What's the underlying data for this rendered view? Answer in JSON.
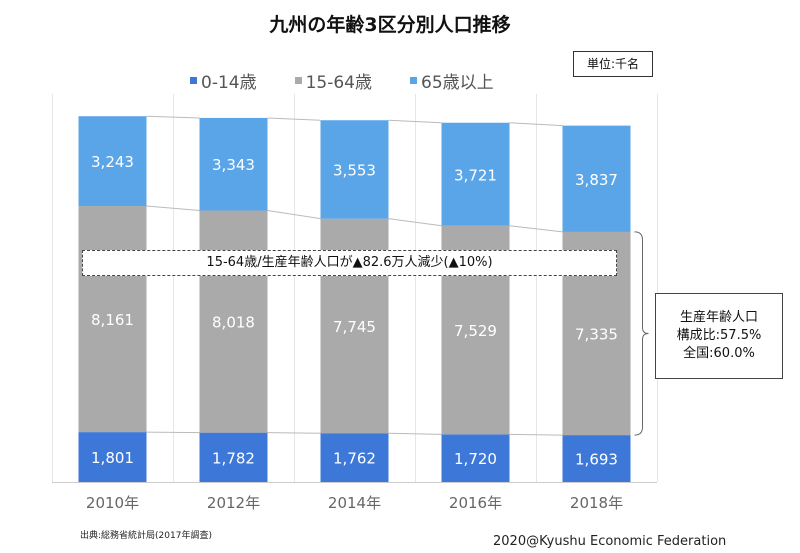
{
  "chart_data": {
    "type": "bar",
    "stacked": true,
    "title": "九州の年齢3区分別人口推移",
    "unit_label": "単位:千名",
    "categories": [
      "2010年",
      "2012年",
      "2014年",
      "2016年",
      "2018年"
    ],
    "series": [
      {
        "name": "0-14歳",
        "color": "#3d78d8",
        "values": [
          1801,
          1782,
          1762,
          1720,
          1693
        ]
      },
      {
        "name": "15-64歳",
        "color": "#aaaaaa",
        "values": [
          8161,
          8018,
          7745,
          7529,
          7335
        ]
      },
      {
        "name": "65歳以上",
        "color": "#5aa5e8",
        "values": [
          3243,
          3343,
          3553,
          3721,
          3837
        ]
      }
    ],
    "legend_position": "top",
    "annotation": "15-64歳/生産年齢人口が▲82.6万人減少(▲10%)",
    "callout": [
      "生産年齢人口",
      "構成比:57.5%",
      "全国:60.0%"
    ],
    "source": "出典:総務省統計局(2017年調査)",
    "credit": "2020@Kyushu Economic Federation"
  }
}
